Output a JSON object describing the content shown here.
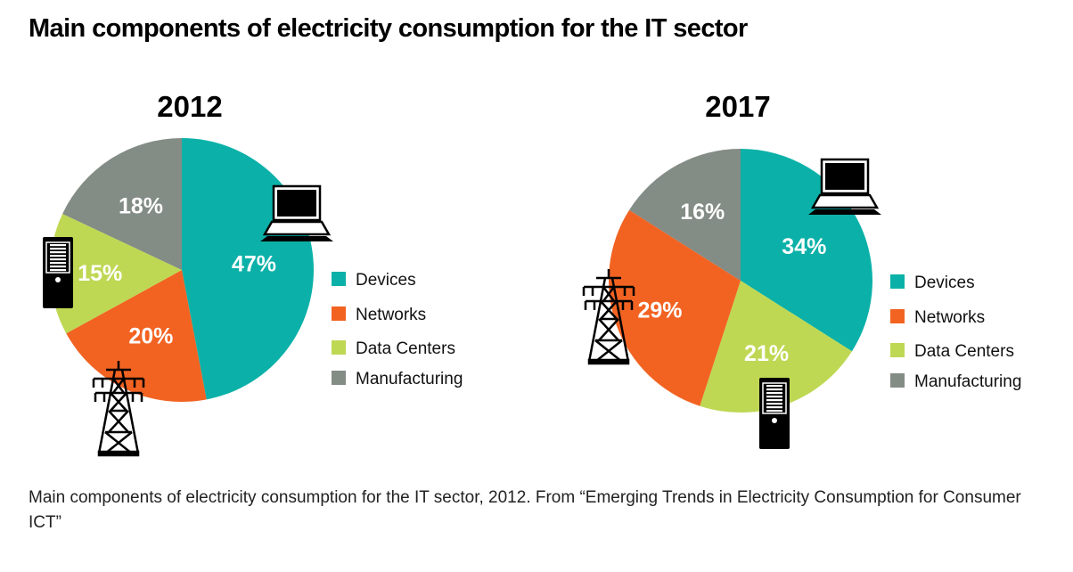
{
  "page_title": "Main components of electricity consumption for the IT sector",
  "caption": "Main components of electricity consumption for the IT sector, 2012. From “Emerging Trends in Electricity Consumption for Consumer ICT”",
  "chart_data": [
    {
      "type": "pie",
      "title": "2012",
      "categories": [
        "Devices",
        "Networks",
        "Data Centers",
        "Manufacturing"
      ],
      "values": [
        47,
        20,
        15,
        18
      ],
      "labels": [
        "47%",
        "20%",
        "15%",
        "18%"
      ],
      "colors": [
        "#0bb1a8",
        "#f26322",
        "#bed854",
        "#838c85"
      ],
      "legend": [
        "Devices",
        "Networks",
        "Data Centers",
        "Manufacturing"
      ]
    },
    {
      "type": "pie",
      "title": "2017",
      "categories": [
        "Devices",
        "Data Centers",
        "Networks",
        "Manufacturing"
      ],
      "values": [
        34,
        21,
        29,
        16
      ],
      "labels": [
        "34%",
        "21%",
        "29%",
        "16%"
      ],
      "colors": [
        "#0bb1a8",
        "#bed854",
        "#f26322",
        "#838c85"
      ],
      "legend": [
        "Devices",
        "Networks",
        "Data Centers",
        "Manufacturing"
      ],
      "legend_colors": [
        "#0bb1a8",
        "#f26322",
        "#bed854",
        "#838c85"
      ]
    }
  ],
  "icons": [
    "laptop-icon",
    "server-tower-icon",
    "power-pylon-icon"
  ]
}
